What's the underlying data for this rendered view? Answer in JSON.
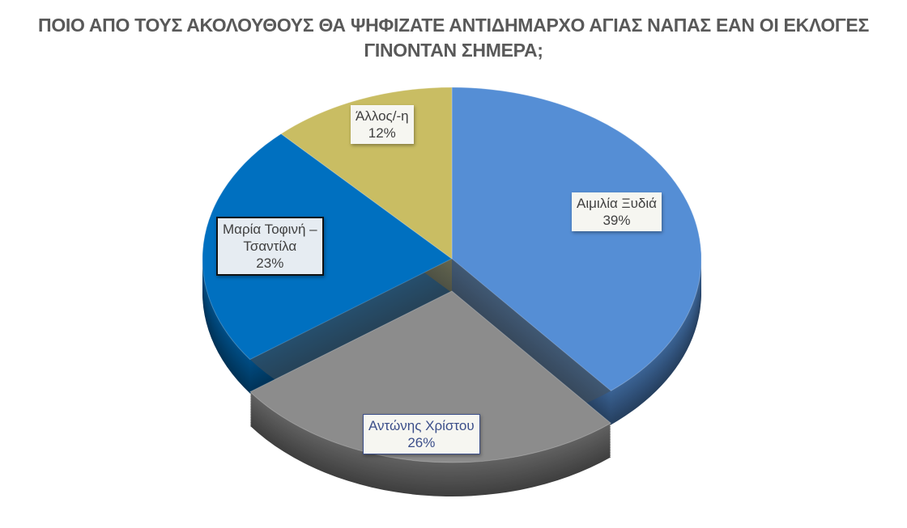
{
  "chart_data": {
    "type": "pie",
    "title": "ΠΟΙΟ ΑΠΟ ΤΟΥΣ ΑΚΟΛΟΥΘΟΥΣ ΘΑ ΨΗΦΙΖΑΤΕ ΑΝΤΙΔΗΜΑΡΧΟ ΑΓΙΑΣ ΝΑΠΑΣ ΕΑΝ ΟΙ ΕΚΛΟΓΕΣ ΓΙΝΟΝΤΑΝ ΣΗΜΕΡΑ;",
    "style": "3d",
    "slices": [
      {
        "label": "Αιμιλία Ξυδιά",
        "value": 39,
        "value_label": "39%",
        "color": "#558ed5"
      },
      {
        "label": "Αντώνης Χρίστου",
        "value": 26,
        "value_label": "26%",
        "color": "#8c8c8c"
      },
      {
        "label": "Μαρία Τοφινή –\nΤσαντίλα",
        "value": 23,
        "value_label": "23%",
        "color": "#0070c0"
      },
      {
        "label": "Άλλος/-η",
        "value": 12,
        "value_label": "12%",
        "color": "#c9bd63"
      }
    ]
  }
}
